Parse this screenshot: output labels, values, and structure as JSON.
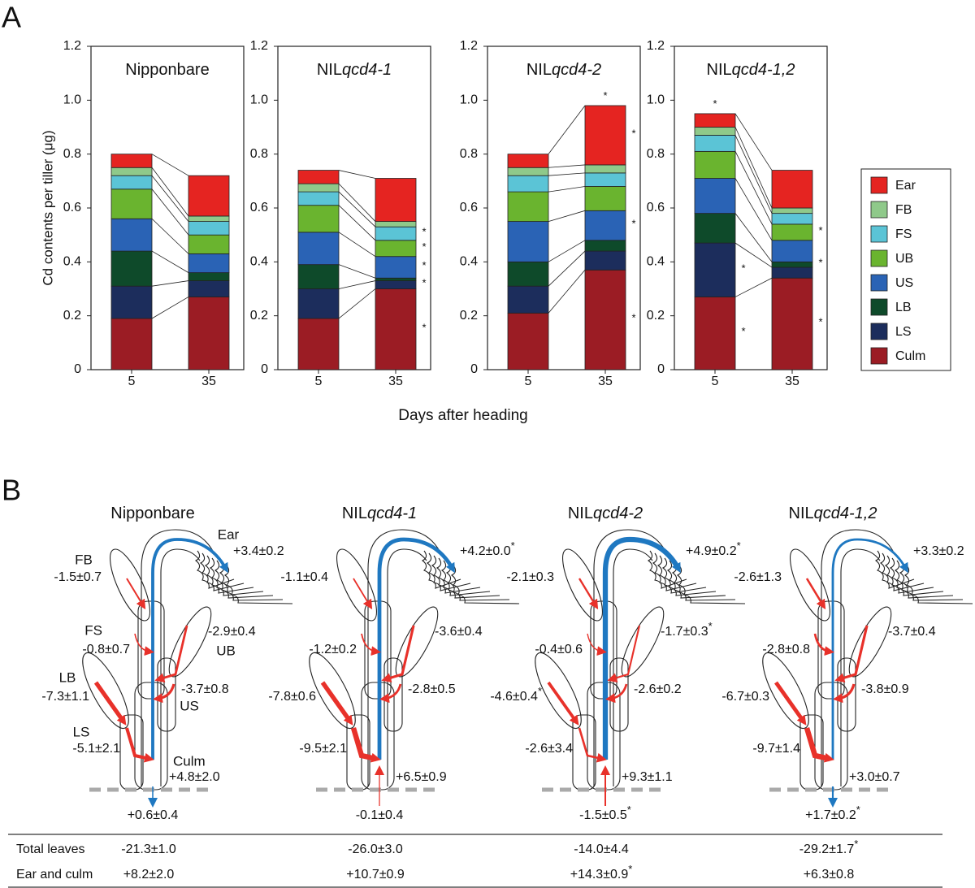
{
  "panel_a": {
    "label": "A",
    "ylabel": "Cd contents per tiller (μg)",
    "xlabel": "Days after heading"
  },
  "chart_data": [
    {
      "type": "bar",
      "stacked": true,
      "title": [
        "Nipponbare"
      ],
      "categories": [
        "5",
        "35"
      ],
      "legend": "right",
      "ylim": [
        0,
        1.2
      ],
      "yticks": [
        0,
        0.2,
        0.4,
        0.6,
        0.8,
        {
          "value": 1,
          "label": "1.0"
        },
        1.2
      ],
      "series": [
        {
          "name": "Culm",
          "color": "#9b1c24",
          "values": [
            0.19,
            0.27
          ]
        },
        {
          "name": "LS",
          "color": "#1c2d5c",
          "values": [
            0.12,
            0.06
          ]
        },
        {
          "name": "LB",
          "color": "#0e4a2a",
          "values": [
            0.13,
            0.03
          ]
        },
        {
          "name": "US",
          "color": "#2a63b5",
          "values": [
            0.12,
            0.07
          ]
        },
        {
          "name": "UB",
          "color": "#6ab42f",
          "values": [
            0.11,
            0.07
          ]
        },
        {
          "name": "FS",
          "color": "#5bc4d6",
          "values": [
            0.05,
            0.05
          ]
        },
        {
          "name": "FB",
          "color": "#8fc98a",
          "values": [
            0.03,
            0.02
          ]
        },
        {
          "name": "Ear",
          "color": "#e52421",
          "values": [
            0.05,
            0.15
          ]
        }
      ],
      "annotations": []
    },
    {
      "type": "bar",
      "stacked": true,
      "title": [
        "NIL",
        "qcd4-1"
      ],
      "categories": [
        "5",
        "35"
      ],
      "ylim": [
        0,
        1.2
      ],
      "yticks": [
        0,
        0.2,
        0.4,
        0.6,
        0.8,
        {
          "value": 1,
          "label": "1.0"
        },
        1.2
      ],
      "series": [
        {
          "name": "Culm",
          "color": "#9b1c24",
          "values": [
            0.19,
            0.3
          ]
        },
        {
          "name": "LS",
          "color": "#1c2d5c",
          "values": [
            0.11,
            0.03
          ]
        },
        {
          "name": "LB",
          "color": "#0e4a2a",
          "values": [
            0.09,
            0.01
          ]
        },
        {
          "name": "US",
          "color": "#2a63b5",
          "values": [
            0.12,
            0.08
          ]
        },
        {
          "name": "UB",
          "color": "#6ab42f",
          "values": [
            0.1,
            0.06
          ]
        },
        {
          "name": "FS",
          "color": "#5bc4d6",
          "values": [
            0.05,
            0.05
          ]
        },
        {
          "name": "FB",
          "color": "#8fc98a",
          "values": [
            0.03,
            0.02
          ]
        },
        {
          "name": "Ear",
          "color": "#e52421",
          "values": [
            0.05,
            0.16
          ]
        }
      ],
      "annotations": [
        {
          "text": "*",
          "category": "35",
          "series": "Culm"
        },
        {
          "text": "*",
          "category": "35",
          "series": "LS"
        },
        {
          "text": "*",
          "category": "35",
          "series": "US"
        },
        {
          "text": "*",
          "category": "35",
          "series": "UB"
        },
        {
          "text": "*",
          "category": "35",
          "series": "FS"
        }
      ]
    },
    {
      "type": "bar",
      "stacked": true,
      "title": [
        "NIL",
        "qcd4-2"
      ],
      "categories": [
        "5",
        "35"
      ],
      "ylim": [
        0,
        1.2
      ],
      "yticks": [
        0,
        0.2,
        0.4,
        0.6,
        0.8,
        {
          "value": 1,
          "label": "1.0"
        },
        1.2
      ],
      "series": [
        {
          "name": "Culm",
          "color": "#9b1c24",
          "values": [
            0.21,
            0.37
          ]
        },
        {
          "name": "LS",
          "color": "#1c2d5c",
          "values": [
            0.1,
            0.07
          ]
        },
        {
          "name": "LB",
          "color": "#0e4a2a",
          "values": [
            0.09,
            0.04
          ]
        },
        {
          "name": "US",
          "color": "#2a63b5",
          "values": [
            0.15,
            0.11
          ]
        },
        {
          "name": "UB",
          "color": "#6ab42f",
          "values": [
            0.11,
            0.09
          ]
        },
        {
          "name": "FS",
          "color": "#5bc4d6",
          "values": [
            0.06,
            0.05
          ]
        },
        {
          "name": "FB",
          "color": "#8fc98a",
          "values": [
            0.03,
            0.03
          ]
        },
        {
          "name": "Ear",
          "color": "#e52421",
          "values": [
            0.05,
            0.22
          ]
        }
      ],
      "annotations": [
        {
          "text": "*",
          "category": "35"
        },
        {
          "text": "*",
          "category": "35",
          "series": "Ear"
        },
        {
          "text": "*",
          "category": "35",
          "series": "US"
        },
        {
          "text": "*",
          "category": "35",
          "series": "Culm"
        }
      ]
    },
    {
      "type": "bar",
      "stacked": true,
      "title": [
        "NIL",
        "qcd4-1,2"
      ],
      "categories": [
        "5",
        "35"
      ],
      "ylim": [
        0,
        1.2
      ],
      "yticks": [
        0,
        0.2,
        0.4,
        0.6,
        0.8,
        {
          "value": 1,
          "label": "1.0"
        },
        1.2
      ],
      "series": [
        {
          "name": "Culm",
          "color": "#9b1c24",
          "values": [
            0.27,
            0.34
          ]
        },
        {
          "name": "LS",
          "color": "#1c2d5c",
          "values": [
            0.2,
            0.04
          ]
        },
        {
          "name": "LB",
          "color": "#0e4a2a",
          "values": [
            0.11,
            0.02
          ]
        },
        {
          "name": "US",
          "color": "#2a63b5",
          "values": [
            0.13,
            0.08
          ]
        },
        {
          "name": "UB",
          "color": "#6ab42f",
          "values": [
            0.1,
            0.06
          ]
        },
        {
          "name": "FS",
          "color": "#5bc4d6",
          "values": [
            0.06,
            0.04
          ]
        },
        {
          "name": "FB",
          "color": "#8fc98a",
          "values": [
            0.03,
            0.02
          ]
        },
        {
          "name": "Ear",
          "color": "#e52421",
          "values": [
            0.05,
            0.14
          ]
        }
      ],
      "annotations": [
        {
          "text": "*",
          "category": "5"
        },
        {
          "text": "*",
          "category": "5",
          "series": "LS"
        },
        {
          "text": "*",
          "category": "5",
          "series": "Culm"
        },
        {
          "text": "*",
          "category": "35",
          "series": "UB"
        },
        {
          "text": "*",
          "category": "35",
          "series": "LB"
        },
        {
          "text": "*",
          "category": "35",
          "series": "Culm"
        }
      ]
    }
  ],
  "panel_b": {
    "label": "B",
    "organ_labels": [
      "Ear",
      "FB",
      "FS",
      "UB",
      "US",
      "LB",
      "LS",
      "Culm"
    ],
    "plants": [
      {
        "title": [
          "Nipponbare"
        ],
        "flows": [
          "+3.4±0.2",
          "-1.5±0.7",
          "-0.8±0.7",
          "-2.9±0.4",
          "-3.7±0.8",
          "-7.3±1.1",
          "-5.1±2.1",
          "+4.8±2.0"
        ],
        "bottom": "+0.6±0.4"
      },
      {
        "title": [
          "NIL",
          "qcd4-1"
        ],
        "flows": [
          "+4.2±0.0*",
          "-1.1±0.4",
          "-1.2±0.2",
          "-3.6±0.4",
          "-2.8±0.5",
          "-7.8±0.6",
          "-9.5±2.1",
          "+6.5±0.9"
        ],
        "bottom": "-0.1±0.4"
      },
      {
        "title": [
          "NIL",
          "qcd4-2"
        ],
        "flows": [
          "+4.9±0.2*",
          "-2.1±0.3",
          "-0.4±0.6",
          "-1.7±0.3*",
          "-2.6±0.2",
          "-4.6±0.4*",
          "-2.6±3.4",
          "+9.3±1.1"
        ],
        "bottom": "-1.5±0.5*"
      },
      {
        "title": [
          "NIL",
          "qcd4-1,2"
        ],
        "flows": [
          "+3.3±0.2",
          "-2.6±1.3",
          "-2.8±0.8",
          "-3.7±0.4",
          "-3.8±0.9",
          "-6.7±0.3",
          "-9.7±1.4",
          "+3.0±0.7"
        ],
        "bottom": "+1.7±0.2*"
      }
    ],
    "table": {
      "row_labels": [
        "Total leaves",
        "Ear and culm"
      ],
      "rows": [
        [
          "-21.3±1.0",
          "-26.0±3.0",
          "-14.0±4.4",
          "-29.2±1.7*"
        ],
        [
          "+8.2±2.0",
          "+10.7±0.9",
          "+14.3±0.9*",
          "+6.3±0.8"
        ]
      ]
    }
  }
}
